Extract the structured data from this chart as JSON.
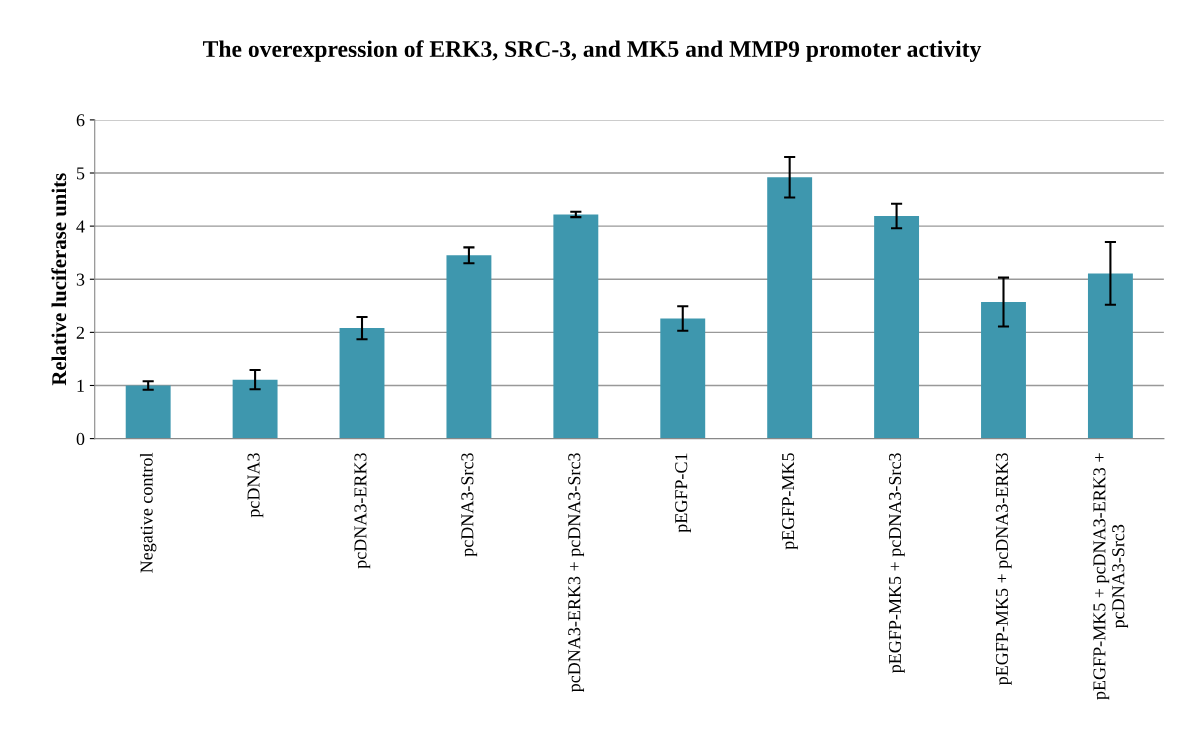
{
  "chart_data": {
    "type": "bar",
    "title": "The overexpression of ERK3, SRC-3, and MK5 and MMP9 promoter activity",
    "ylabel": "Relative luciferase units",
    "categories": [
      "Negative control",
      "pcDNA3",
      "pcDNA3-ERK3",
      "pcDNA3-Src3",
      "pcDNA3-ERK3 + pcDNA3-Src3",
      "pEGFP-C1",
      "pEGFP-MK5",
      "pEGFP-MK5 + pcDNA3-Src3",
      "pEGFP-MK5 + pcDNA3-ERK3",
      "pEGFP-MK5 + pcDNA3-ERK3 +\npcDNA3-Src3"
    ],
    "values": [
      1.0,
      1.11,
      2.08,
      3.45,
      4.22,
      2.26,
      4.92,
      4.19,
      2.57,
      3.11
    ],
    "errors": [
      0.08,
      0.18,
      0.21,
      0.15,
      0.05,
      0.23,
      0.38,
      0.23,
      0.46,
      0.59
    ],
    "color": "#3e97ae",
    "ylim": [
      0,
      6
    ],
    "yticks": [
      0,
      1,
      2,
      3,
      4,
      5,
      6
    ],
    "grid": "y",
    "legend": false
  }
}
